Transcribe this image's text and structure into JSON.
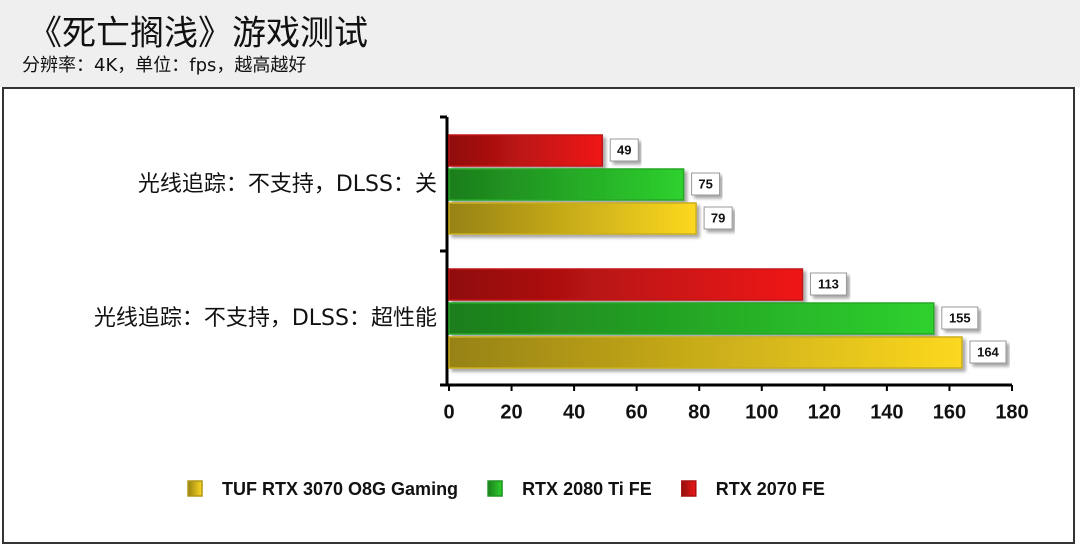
{
  "chart_data": {
    "type": "bar",
    "orientation": "horizontal",
    "title": "《死亡搁浅》游戏测试",
    "subtitle": "分辨率：4K，单位：fps，越高越好",
    "categories": [
      "光线追踪：不支持，DLSS：关",
      "光线追踪：不支持，DLSS：超性能"
    ],
    "series": [
      {
        "name": "TUF RTX 3070 O8G Gaming",
        "color": "#fcd820",
        "values": [
          79,
          164
        ]
      },
      {
        "name": "RTX 2080 Ti FE",
        "color": "#2ed12e",
        "values": [
          75,
          155
        ]
      },
      {
        "name": "RTX 2070 FE",
        "color": "#f01818",
        "values": [
          49,
          113
        ]
      }
    ],
    "xlim": [
      0,
      180
    ],
    "xticks": [
      0,
      20,
      40,
      60,
      80,
      100,
      120,
      140,
      160,
      180
    ],
    "legend": "bottom"
  }
}
